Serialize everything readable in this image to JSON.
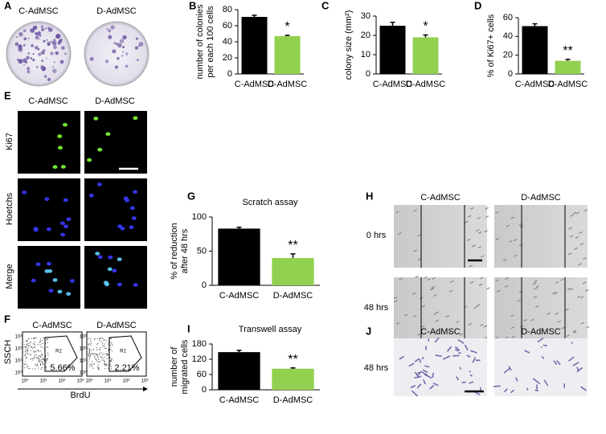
{
  "chart_data": [
    {
      "type": "bar",
      "letter": "B",
      "ylabel": [
        "number of colonies",
        "per each 100 cells"
      ],
      "categories": [
        "C-AdMSC",
        "D-AdMSC"
      ],
      "values": [
        71,
        47
      ],
      "errors": [
        2,
        1
      ],
      "colors": [
        "#000000",
        "#92d050"
      ],
      "ylim": [
        0,
        80
      ],
      "yticks": [
        0,
        20,
        40,
        60,
        80
      ],
      "annotations": [
        null,
        "*"
      ]
    },
    {
      "type": "bar",
      "letter": "C",
      "ylabel": [
        "colony size (mm²)"
      ],
      "categories": [
        "C-AdMSC",
        "D-AdMSC"
      ],
      "values": [
        25,
        19
      ],
      "errors": [
        1.8,
        1.2
      ],
      "colors": [
        "#000000",
        "#92d050"
      ],
      "ylim": [
        0,
        30
      ],
      "yticks": [
        0,
        10,
        20,
        30
      ],
      "annotations": [
        null,
        "*"
      ]
    },
    {
      "type": "bar",
      "letter": "D",
      "ylabel": [
        "% of Ki67+ cells"
      ],
      "categories": [
        "C-AdMSC",
        "D-AdMSC"
      ],
      "values": [
        51,
        14
      ],
      "errors": [
        2.5,
        1.5
      ],
      "colors": [
        "#000000",
        "#92d050"
      ],
      "ylim": [
        0,
        60
      ],
      "yticks": [
        0,
        20,
        40,
        60
      ],
      "annotations": [
        null,
        "**"
      ]
    },
    {
      "type": "bar",
      "letter": "G",
      "title": "Scratch assay",
      "ylabel": [
        "% of reduction",
        "after 48 hrs"
      ],
      "categories": [
        "C-AdMSC",
        "D-AdMSC"
      ],
      "values": [
        83,
        40
      ],
      "errors": [
        2,
        6
      ],
      "colors": [
        "#000000",
        "#92d050"
      ],
      "ylim": [
        0,
        100
      ],
      "yticks": [
        0,
        50,
        100
      ],
      "annotations": [
        null,
        "**"
      ]
    },
    {
      "type": "bar",
      "letter": "I",
      "title": "Transwell assay",
      "ylabel": [
        "number of",
        "migrated cells"
      ],
      "categories": [
        "C-AdMSC",
        "D-AdMSC"
      ],
      "values": [
        148,
        83
      ],
      "errors": [
        7,
        3
      ],
      "colors": [
        "#000000",
        "#92d050"
      ],
      "ylim": [
        0,
        180
      ],
      "yticks": [
        0,
        60,
        120,
        180
      ],
      "annotations": [
        null,
        "**"
      ]
    }
  ],
  "panel_A": {
    "letter": "A",
    "columns": [
      "C-AdMSC",
      "D-AdMSC"
    ]
  },
  "panel_E": {
    "letter": "E",
    "columns": [
      "C-AdMSC",
      "D-AdMSC"
    ],
    "rows": [
      "Ki67",
      "Hoetchs",
      "Merge"
    ]
  },
  "panel_F": {
    "letter": "F",
    "plots": [
      {
        "title": "C-AdMSC",
        "gate": "R2",
        "percent": "5.66%"
      },
      {
        "title": "D-AdMSC",
        "gate": "R2",
        "percent": "2.21%"
      }
    ],
    "ylabel": "SSCH",
    "xlabel": "BrdU",
    "ticks": [
      "10⁰",
      "10¹",
      "10²",
      "10³"
    ]
  },
  "panel_H": {
    "letter": "H",
    "columns": [
      "C-AdMSC",
      "D-AdMSC"
    ],
    "rows": [
      "0 hrs",
      "48 hrs"
    ]
  },
  "panel_J": {
    "letter": "J",
    "columns": [
      "C-AdMSC",
      "D-AdMSC"
    ],
    "rows": [
      "48 hrs"
    ]
  }
}
